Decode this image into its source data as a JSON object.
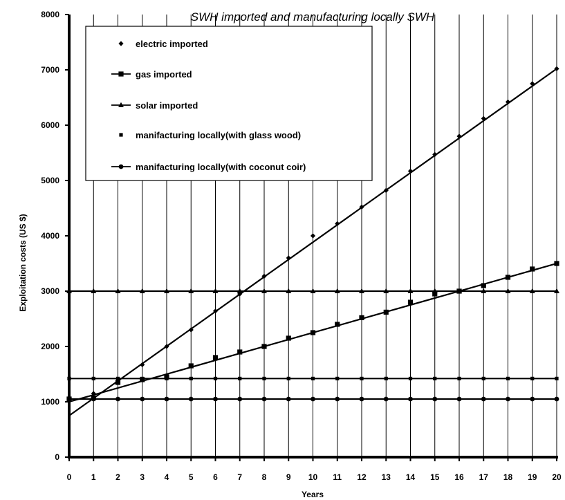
{
  "chart_data": {
    "type": "line",
    "title": "SWH imported and manufacturing locally SWH",
    "xlabel": "Years",
    "ylabel": "Exploitation costs (US $)",
    "xlim": [
      0,
      20
    ],
    "ylim": [
      0,
      8000
    ],
    "x_ticks": [
      "0",
      "1",
      "2",
      "3",
      "4",
      "5",
      "6",
      "7",
      "8",
      "9",
      "10",
      "11",
      "12",
      "13",
      "14",
      "15",
      "16",
      "17",
      "18",
      "19",
      "20"
    ],
    "y_ticks": [
      "0",
      "1000",
      "2000",
      "3000",
      "4000",
      "5000",
      "6000",
      "7000",
      "8000"
    ],
    "grid": "vertical",
    "legend_position": "top-left",
    "x": [
      0,
      1,
      2,
      3,
      4,
      5,
      6,
      7,
      8,
      9,
      10,
      11,
      12,
      13,
      14,
      15,
      16,
      17,
      18,
      19,
      20
    ],
    "series": [
      {
        "name": "electric imported",
        "marker": "diamond",
        "values": [
          1050,
          1150,
          1350,
          1670,
          2000,
          2300,
          2640,
          2950,
          3270,
          3600,
          4000,
          4220,
          4520,
          4820,
          5170,
          5470,
          5800,
          6120,
          6420,
          6750,
          7020
        ],
        "trend": [
          750,
          7020
        ]
      },
      {
        "name": "gas imported",
        "marker": "square",
        "values": [
          1050,
          1070,
          1350,
          1400,
          1450,
          1650,
          1800,
          1900,
          2000,
          2150,
          2250,
          2400,
          2520,
          2620,
          2800,
          2950,
          3000,
          3100,
          3250,
          3400,
          3500
        ],
        "trend": [
          1000,
          3500
        ]
      },
      {
        "name": "solar imported",
        "marker": "triangle",
        "values": [
          3000,
          3000,
          3000,
          3000,
          3000,
          3000,
          3000,
          3000,
          3000,
          3000,
          3000,
          3000,
          3000,
          3000,
          3000,
          3000,
          3000,
          3000,
          3000,
          3000,
          3000
        ],
        "trend": [
          3000,
          3000
        ]
      },
      {
        "name": "manifacturing locally(with glass wood)",
        "marker": "small-square",
        "values": [
          1420,
          1420,
          1420,
          1420,
          1420,
          1420,
          1420,
          1420,
          1420,
          1420,
          1420,
          1420,
          1420,
          1420,
          1420,
          1420,
          1420,
          1420,
          1420,
          1420,
          1420
        ],
        "trend": [
          1420,
          1420
        ]
      },
      {
        "name": "manifacturing locally(with coconut coir)",
        "marker": "circle",
        "values": [
          1050,
          1050,
          1050,
          1050,
          1050,
          1050,
          1050,
          1050,
          1050,
          1050,
          1050,
          1050,
          1050,
          1050,
          1050,
          1050,
          1050,
          1050,
          1050,
          1050,
          1050
        ],
        "trend": [
          1050,
          1050
        ]
      }
    ]
  }
}
